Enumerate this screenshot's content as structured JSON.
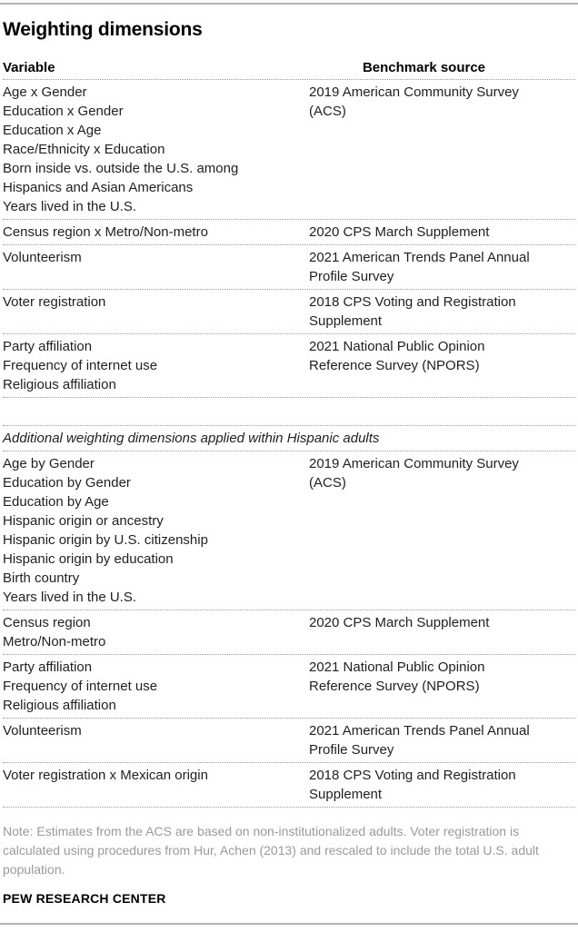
{
  "chart_data": {
    "type": "table",
    "title": "Weighting dimensions",
    "columns": [
      "Variable",
      "Benchmark source"
    ],
    "sections": [
      {
        "rows": [
          {
            "variables": [
              "Age x Gender",
              "Education x Gender",
              "Education x Age",
              "Race/Ethnicity x Education",
              "Born inside vs. outside the U.S. among Hispanics and Asian Americans",
              "Years lived in the U.S."
            ],
            "source": "2019 American Community Survey (ACS)"
          },
          {
            "variables": [
              "Census region x Metro/Non-metro"
            ],
            "source": "2020 CPS March Supplement"
          },
          {
            "variables": [
              "Volunteerism"
            ],
            "source": "2021 American Trends Panel Annual Profile Survey"
          },
          {
            "variables": [
              "Voter registration"
            ],
            "source": "2018 CPS Voting and Registration Supplement"
          },
          {
            "variables": [
              "Party affiliation",
              "Frequency of internet use",
              "Religious affiliation"
            ],
            "source": "2021 National Public Opinion Reference Survey (NPORS)"
          }
        ]
      },
      {
        "header": "Additional weighting dimensions applied within Hispanic adults",
        "rows": [
          {
            "variables": [
              "Age by Gender",
              "Education by Gender",
              "Education by Age",
              "Hispanic origin or ancestry",
              "Hispanic origin by U.S. citizenship",
              "Hispanic origin by education",
              "Birth country",
              "Years lived in the U.S."
            ],
            "source": "2019 American Community Survey (ACS)"
          },
          {
            "variables": [
              "Census region",
              "Metro/Non-metro"
            ],
            "source": "2020 CPS March Supplement"
          },
          {
            "variables": [
              "Party affiliation",
              "Frequency of internet use",
              "Religious affiliation"
            ],
            "source": "2021 National Public Opinion Reference Survey (NPORS)"
          },
          {
            "variables": [
              "Volunteerism"
            ],
            "source": "2021 American Trends Panel Annual Profile Survey"
          },
          {
            "variables": [
              "Voter registration x Mexican origin"
            ],
            "source": "2018 CPS Voting and Registration Supplement"
          }
        ]
      }
    ],
    "note": "Note: Estimates from the ACS are based on non-institutionalized adults. Voter registration is calculated using procedures from Hur, Achen (2013) and rescaled to include the total U.S. adult population.",
    "source_label": "PEW RESEARCH CENTER"
  },
  "colors": {
    "background": "#ffffff",
    "text": "#1f1f1f",
    "title_text": "#000000",
    "note_text": "#9a9a9a",
    "rule": "#b3b3b3",
    "dotted_line": "#999999"
  }
}
